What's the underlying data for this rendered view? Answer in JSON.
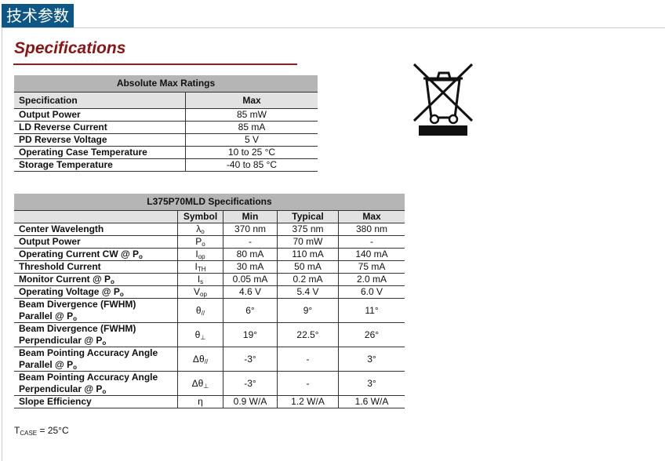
{
  "tab_label": "技术参数",
  "title": "Specifications",
  "abs_table": {
    "caption": "Absolute Max Ratings",
    "headers": [
      "Specification",
      "Max"
    ],
    "rows": [
      [
        "Output Power",
        "85 mW"
      ],
      [
        "LD Reverse Current",
        "85 mA"
      ],
      [
        "PD Reverse Voltage",
        "5 V"
      ],
      [
        "Operating Case Temperature",
        "10 to 25 °C"
      ],
      [
        "Storage Temperature",
        "-40 to 85 °C"
      ]
    ]
  },
  "spec_table": {
    "caption": "L375P70MLD Specifications",
    "headers": [
      "",
      "Symbol",
      "Min",
      "Typical",
      "Max"
    ],
    "rows": [
      {
        "name": "Center Wavelength",
        "sym": "λ",
        "sub": "o",
        "min": "370 nm",
        "typ": "375 nm",
        "max": "380 nm"
      },
      {
        "name": "Output Power",
        "sym": "P",
        "sub": "o",
        "min": "-",
        "typ": "70 mW",
        "max": "-"
      },
      {
        "name": "Operating Current CW @ P",
        "nsub": "o",
        "sym": "I",
        "sub": "op",
        "min": "80 mA",
        "typ": "110 mA",
        "max": "140 mA"
      },
      {
        "name": "Threshold Current",
        "sym": "I",
        "sub": "TH",
        "min": "30 mA",
        "typ": "50 mA",
        "max": "75 mA"
      },
      {
        "name": "Monitor Current @ P",
        "nsub": "o",
        "sym": "I",
        "sub": "s",
        "min": "0.05 mA",
        "typ": "0.2 mA",
        "max": "2.0 mA"
      },
      {
        "name": "Operating Voltage @ P",
        "nsub": "o",
        "sym": "V",
        "sub": "op",
        "min": "4.6 V",
        "typ": "5.4 V",
        "max": "6.0 V"
      },
      {
        "name": "Beam Divergence (FWHM)",
        "name2": "Parallel @ P",
        "nsub": "o",
        "sym": "θ",
        "sub": "//",
        "min": "6°",
        "typ": "9°",
        "max": "11°"
      },
      {
        "name": "Beam Divergence (FWHM)",
        "name2": "Perpendicular @ P",
        "nsub": "o",
        "sym": "θ",
        "sub": "⊥",
        "min": "19°",
        "typ": "22.5°",
        "max": "26°"
      },
      {
        "name": "Beam Pointing Accuracy Angle",
        "name2": "Parallel @ P",
        "nsub": "o",
        "sym": "Δθ",
        "sub": "//",
        "min": "-3°",
        "typ": "-",
        "max": "3°"
      },
      {
        "name": "Beam Pointing Accuracy Angle",
        "name2": "Perpendicular @ P",
        "nsub": "o",
        "sym": "Δθ",
        "sub": "⊥",
        "min": "-3°",
        "typ": "-",
        "max": "3°"
      },
      {
        "name": "Slope Efficiency",
        "sym": "η",
        "sub": "",
        "min": "0.9 W/A",
        "typ": "1.2 W/A",
        "max": "1.6 W/A"
      }
    ]
  },
  "note": {
    "t": "T",
    "sub": "CASE",
    "rest": " = 25°C"
  },
  "icon": "weee-crossed-bin-icon"
}
